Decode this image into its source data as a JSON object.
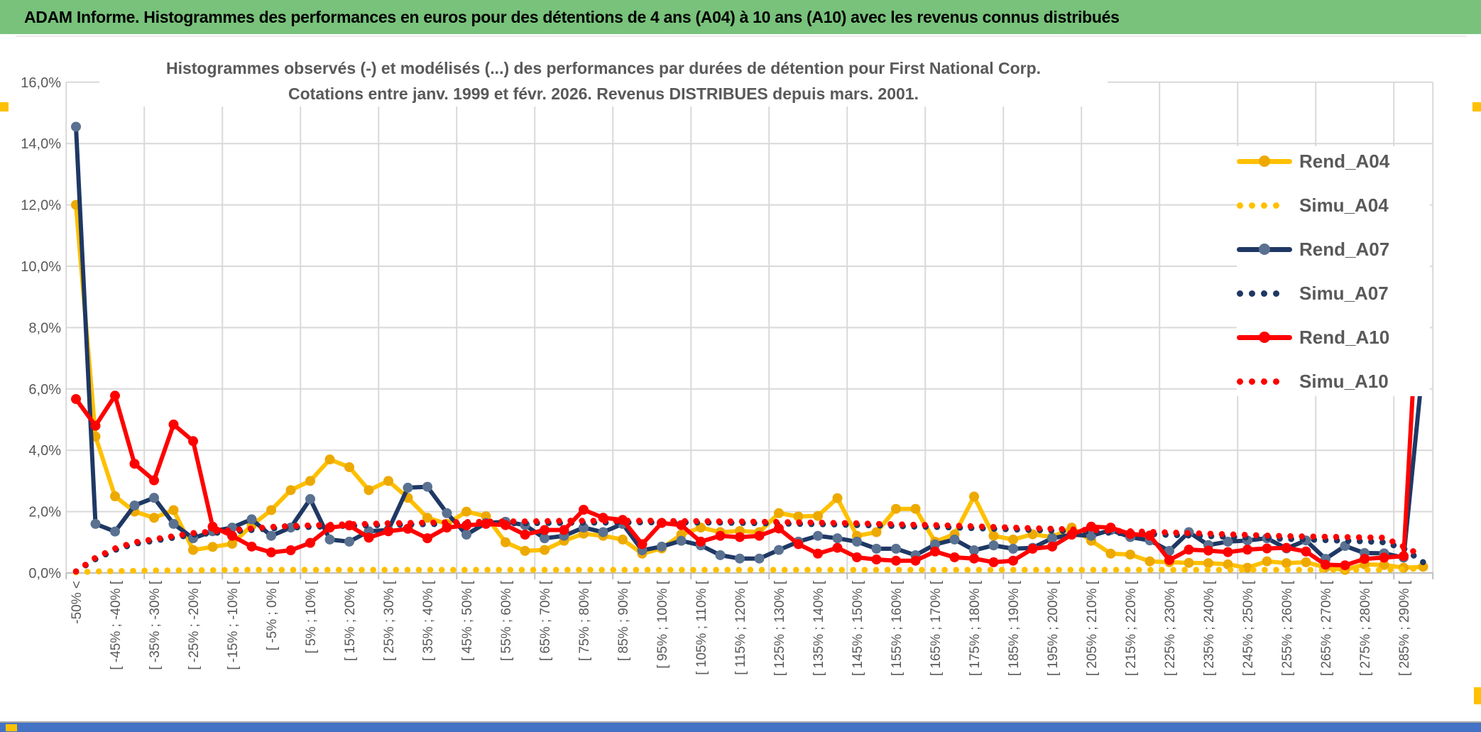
{
  "window": {
    "title": "ADAM Informe. Histogrammes des performances en euros pour des détentions de 4 ans (A04) à 10 ans (A10) avec les revenus connus distribués"
  },
  "chart": {
    "title_line1": "Histogrammes observés (-) et modélisés (...) des performances par durées de détention pour First National Corp.",
    "title_line2": "Cotations entre janv. 1999 et févr. 2026. Revenus DISTRIBUES depuis mars. 2001."
  },
  "colors": {
    "header_green": "#78C27B",
    "gold": "#FFC000",
    "gold_marker": "#EDA900",
    "navy": "#1F3864",
    "navy_marker": "#5A7191",
    "red": "#FF0000",
    "grid": "#D9D9D9",
    "axis_line": "#BFBFBF",
    "axis_text": "#595959",
    "bottom_bar_blue": "#4472C4",
    "selection_handle_gold": "#FFC000"
  },
  "chart_data": {
    "type": "line",
    "title": "Histogrammes observés (-) et modélisés (...) des performances par durées de détention pour First National Corp. Cotations entre janv. 1999 et févr. 2026. Revenus DISTRIBUES depuis mars. 2001.",
    "xlabel": "",
    "ylabel": "",
    "ylim": [
      0,
      16
    ],
    "y_tick_step": 2,
    "grid": true,
    "legend_position": "right-inside",
    "y_ticks": [
      "0,0%",
      "2,0%",
      "4,0%",
      "6,0%",
      "8,0%",
      "10,0%",
      "12,0%",
      "14,0%",
      "16,0%"
    ],
    "categories": [
      "-50% <",
      "",
      "[ -45% ; -40% [",
      "",
      "[ -35% ; -30% [",
      "",
      "[ -25% ; -20% [",
      "",
      "[ -15% ; -10% [",
      "",
      "[ -5% ; 0% [",
      "",
      "[ 5% ; 10% [",
      "",
      "[ 15% ; 20% [",
      "",
      "[ 25% ; 30% [",
      "",
      "[ 35% ; 40% [",
      "",
      "[ 45% ; 50% [",
      "",
      "[ 55% ; 60% [",
      "",
      "[ 65% ; 70% [",
      "",
      "[ 75% ; 80% [",
      "",
      "[ 85% ; 90% [",
      "",
      "[ 95% ; 100% [",
      "",
      "[ 105% ; 110% [",
      "",
      "[ 115% ; 120% [",
      "",
      "[ 125% ; 130% [",
      "",
      "[ 135% ; 140% [",
      "",
      "[ 145% ; 150% [",
      "",
      "[ 155% ; 160% [",
      "",
      "[ 165% ; 170% [",
      "",
      "[ 175% ; 180% [",
      "",
      "[ 185% ; 190% [",
      "",
      "[ 195% ; 200% [",
      "",
      "[ 205% ; 210% [",
      "",
      "[ 215% ; 220% [",
      "",
      "[ 225% ; 230% [",
      "",
      "[ 235% ; 240% [",
      "",
      "[ 245% ; 250% [",
      "",
      "[ 255% ; 260% [",
      "",
      "[ 265% ; 270% [",
      "",
      "[ 275% ; 280% [",
      "",
      "[ 285% ; 290% [",
      ""
    ],
    "series": [
      {
        "name": "Rend_A04",
        "style": "solid",
        "color": "#FFC000",
        "marker": "#EDA900",
        "values": [
          12.0,
          4.45,
          2.5,
          2.0,
          1.8,
          2.05,
          0.75,
          0.85,
          0.95,
          1.55,
          2.05,
          2.7,
          3.0,
          3.7,
          3.45,
          2.7,
          3.0,
          2.45,
          1.8,
          1.6,
          2.0,
          1.85,
          1.0,
          0.72,
          0.75,
          1.05,
          1.28,
          1.21,
          1.09,
          0.63,
          0.8,
          1.25,
          1.48,
          1.33,
          1.37,
          1.33,
          1.95,
          1.84,
          1.86,
          2.44,
          1.21,
          1.33,
          2.09,
          2.09,
          1.02,
          1.26,
          2.49,
          1.21,
          1.09,
          1.26,
          1.17,
          1.48,
          1.05,
          0.63,
          0.6,
          0.38,
          0.35,
          0.33,
          0.32,
          0.28,
          0.17,
          0.38,
          0.32,
          0.35,
          0.18,
          0.1,
          0.28,
          0.26,
          0.17,
          0.2
        ]
      },
      {
        "name": "Simu_A04",
        "style": "dotted",
        "color": "#FFC000",
        "values": [
          0.02,
          0.05,
          0.06,
          0.07,
          0.08,
          0.08,
          0.09,
          0.09,
          0.1,
          0.1,
          0.1,
          0.1,
          0.1,
          0.1,
          0.1,
          0.1,
          0.1,
          0.1,
          0.1,
          0.1,
          0.1,
          0.1,
          0.1,
          0.1,
          0.1,
          0.1,
          0.1,
          0.1,
          0.1,
          0.1,
          0.1,
          0.1,
          0.1,
          0.1,
          0.1,
          0.1,
          0.1,
          0.1,
          0.1,
          0.1,
          0.1,
          0.1,
          0.1,
          0.1,
          0.1,
          0.1,
          0.1,
          0.1,
          0.1,
          0.1,
          0.1,
          0.1,
          0.1,
          0.1,
          0.1,
          0.1,
          0.1,
          0.1,
          0.1,
          0.1,
          0.1,
          0.1,
          0.1,
          0.1,
          0.1,
          0.1,
          0.1,
          0.1,
          0.12,
          0.15
        ]
      },
      {
        "name": "Rend_A07",
        "style": "solid",
        "color": "#1F3864",
        "marker": "#5A7191",
        "values": [
          14.55,
          1.6,
          1.35,
          2.2,
          2.45,
          1.6,
          1.13,
          1.36,
          1.48,
          1.75,
          1.21,
          1.48,
          2.41,
          1.09,
          1.02,
          1.36,
          1.4,
          2.78,
          2.81,
          1.95,
          1.25,
          1.63,
          1.67,
          1.56,
          1.13,
          1.21,
          1.48,
          1.33,
          1.6,
          0.74,
          0.86,
          1.05,
          0.9,
          0.58,
          0.47,
          0.47,
          0.75,
          1.02,
          1.21,
          1.13,
          1.02,
          0.79,
          0.79,
          0.58,
          0.93,
          1.09,
          0.74,
          0.9,
          0.79,
          0.82,
          1.13,
          1.25,
          1.21,
          1.4,
          1.17,
          1.06,
          0.72,
          1.33,
          0.91,
          1.02,
          1.06,
          1.13,
          0.8,
          1.06,
          0.46,
          0.88,
          0.65,
          0.64,
          0.5,
          6.84
        ]
      },
      {
        "name": "Simu_A07",
        "style": "dotted",
        "color": "#1F3864",
        "values": [
          0.05,
          0.45,
          0.75,
          0.95,
          1.05,
          1.15,
          1.25,
          1.3,
          1.35,
          1.4,
          1.45,
          1.48,
          1.5,
          1.52,
          1.54,
          1.55,
          1.57,
          1.58,
          1.59,
          1.6,
          1.6,
          1.61,
          1.62,
          1.62,
          1.63,
          1.63,
          1.64,
          1.64,
          1.65,
          1.65,
          1.65,
          1.65,
          1.64,
          1.64,
          1.63,
          1.62,
          1.61,
          1.6,
          1.59,
          1.58,
          1.56,
          1.55,
          1.53,
          1.51,
          1.5,
          1.48,
          1.46,
          1.44,
          1.42,
          1.4,
          1.38,
          1.36,
          1.34,
          1.31,
          1.29,
          1.27,
          1.24,
          1.22,
          1.2,
          1.18,
          1.15,
          1.13,
          1.11,
          1.09,
          1.07,
          1.05,
          1.03,
          1.0,
          0.8,
          0.35
        ]
      },
      {
        "name": "Rend_A10",
        "style": "solid",
        "color": "#FF0000",
        "marker": "#FF0000",
        "values": [
          5.67,
          4.8,
          5.78,
          3.56,
          3.02,
          4.84,
          4.3,
          1.51,
          1.21,
          0.86,
          0.67,
          0.74,
          0.98,
          1.48,
          1.55,
          1.15,
          1.36,
          1.44,
          1.13,
          1.48,
          1.55,
          1.6,
          1.56,
          1.25,
          1.4,
          1.4,
          2.06,
          1.8,
          1.73,
          0.94,
          1.63,
          1.56,
          1.02,
          1.21,
          1.17,
          1.21,
          1.45,
          0.94,
          0.63,
          0.82,
          0.51,
          0.44,
          0.4,
          0.4,
          0.7,
          0.51,
          0.47,
          0.35,
          0.4,
          0.79,
          0.86,
          1.25,
          1.51,
          1.48,
          1.27,
          1.22,
          0.42,
          0.76,
          0.73,
          0.68,
          0.76,
          0.8,
          0.82,
          0.7,
          0.27,
          0.25,
          0.46,
          0.5,
          0.55,
          11.98
        ]
      },
      {
        "name": "Simu_A10",
        "style": "dotted",
        "color": "#FF0000",
        "values": [
          0.05,
          0.5,
          0.8,
          1.0,
          1.1,
          1.2,
          1.3,
          1.35,
          1.4,
          1.45,
          1.5,
          1.53,
          1.55,
          1.57,
          1.59,
          1.6,
          1.62,
          1.63,
          1.64,
          1.65,
          1.66,
          1.67,
          1.68,
          1.68,
          1.69,
          1.7,
          1.7,
          1.7,
          1.7,
          1.7,
          1.7,
          1.69,
          1.69,
          1.68,
          1.68,
          1.67,
          1.66,
          1.65,
          1.64,
          1.63,
          1.62,
          1.6,
          1.59,
          1.57,
          1.56,
          1.54,
          1.52,
          1.5,
          1.48,
          1.46,
          1.44,
          1.42,
          1.4,
          1.38,
          1.36,
          1.34,
          1.32,
          1.3,
          1.28,
          1.26,
          1.24,
          1.22,
          1.2,
          1.19,
          1.18,
          1.17,
          1.16,
          1.15,
          0.86,
          0.55
        ]
      }
    ]
  }
}
